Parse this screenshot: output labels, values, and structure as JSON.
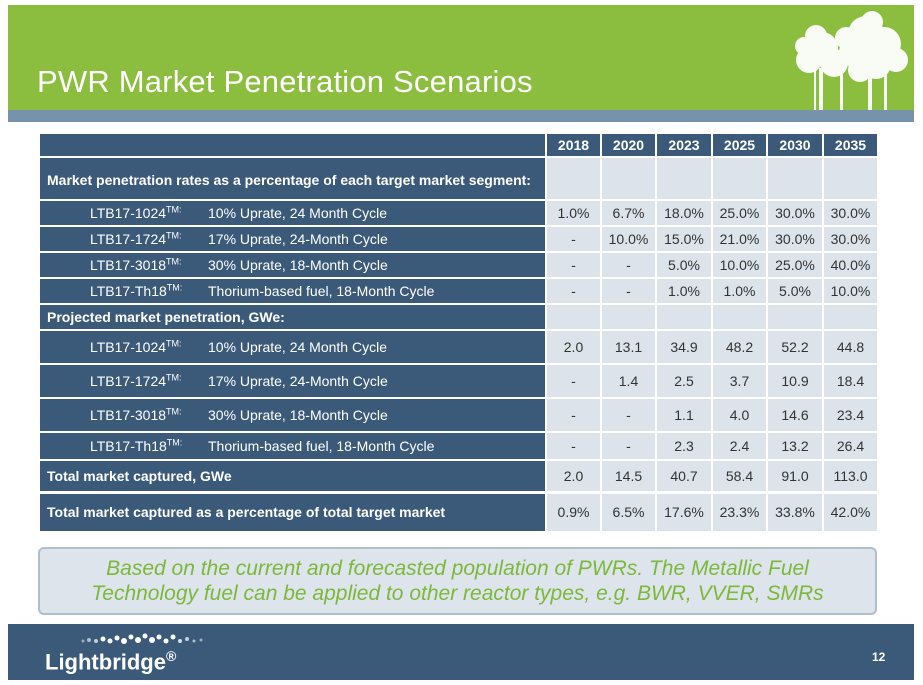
{
  "title": "PWR Market Penetration Scenarios",
  "table": {
    "years": [
      "2018",
      "2020",
      "2023",
      "2025",
      "2030",
      "2035"
    ],
    "section1_label": "Market penetration rates as a percentage of each target market segment:",
    "rates": [
      {
        "code": "LTB17-1024",
        "tm": "TM:",
        "desc": "10% Uprate, 24 Month Cycle",
        "values": [
          "1.0%",
          "6.7%",
          "18.0%",
          "25.0%",
          "30.0%",
          "30.0%"
        ]
      },
      {
        "code": "LTB17-1724",
        "tm": "TM:",
        "desc": "17% Uprate, 24-Month Cycle",
        "values": [
          "-",
          "10.0%",
          "15.0%",
          "21.0%",
          "30.0%",
          "30.0%"
        ]
      },
      {
        "code": "LTB17-3018",
        "tm": "TM:",
        "desc": "30% Uprate, 18-Month Cycle",
        "values": [
          "-",
          "-",
          "5.0%",
          "10.0%",
          "25.0%",
          "40.0%"
        ]
      },
      {
        "code": "LTB17-Th18",
        "tm": "TM:",
        "desc": "Thorium-based fuel, 18-Month Cycle",
        "values": [
          "-",
          "-",
          "1.0%",
          "1.0%",
          "5.0%",
          "10.0%"
        ]
      }
    ],
    "section2_label": "Projected market penetration, GWe:",
    "gwe": [
      {
        "code": "LTB17-1024",
        "tm": "TM:",
        "desc": "10% Uprate, 24 Month Cycle",
        "values": [
          "2.0",
          "13.1",
          "34.9",
          "48.2",
          "52.2",
          "44.8"
        ]
      },
      {
        "code": "LTB17-1724",
        "tm": "TM:",
        "desc": "17% Uprate, 24-Month Cycle",
        "values": [
          "-",
          "1.4",
          "2.5",
          "3.7",
          "10.9",
          "18.4"
        ]
      },
      {
        "code": "LTB17-3018",
        "tm": "TM:",
        "desc": "30% Uprate, 18-Month Cycle",
        "values": [
          "-",
          "-",
          "1.1",
          "4.0",
          "14.6",
          "23.4"
        ]
      },
      {
        "code": "LTB17-Th18",
        "tm": "TM:",
        "desc": "Thorium-based fuel, 18-Month Cycle",
        "values": [
          "-",
          "-",
          "2.3",
          "2.4",
          "13.2",
          "26.4"
        ]
      }
    ],
    "total_gwe": {
      "label": "Total market captured, GWe",
      "values": [
        "2.0",
        "14.5",
        "40.7",
        "58.4",
        "91.0",
        "113.0"
      ]
    },
    "total_pct": {
      "label": "Total market captured as a percentage of total target market",
      "values": [
        "0.9%",
        "6.5%",
        "17.6%",
        "23.3%",
        "33.8%",
        "42.0%"
      ]
    }
  },
  "note": "Based on the current and forecasted population of PWRs.  The Metallic Fuel Technology fuel can be applied to other reactor types, e.g. BWR, VVER, SMRs",
  "footer": {
    "logo": "Lightbridge",
    "logo_mark": "®",
    "page_number": "12"
  },
  "colors": {
    "header_green": "#8bbd3e",
    "navy": "#3b5a7a",
    "cell_light": "#dce3ea",
    "note_text_green": "#7cb83a"
  },
  "icons": [
    "trees-icon",
    "logo-dots-icon"
  ]
}
